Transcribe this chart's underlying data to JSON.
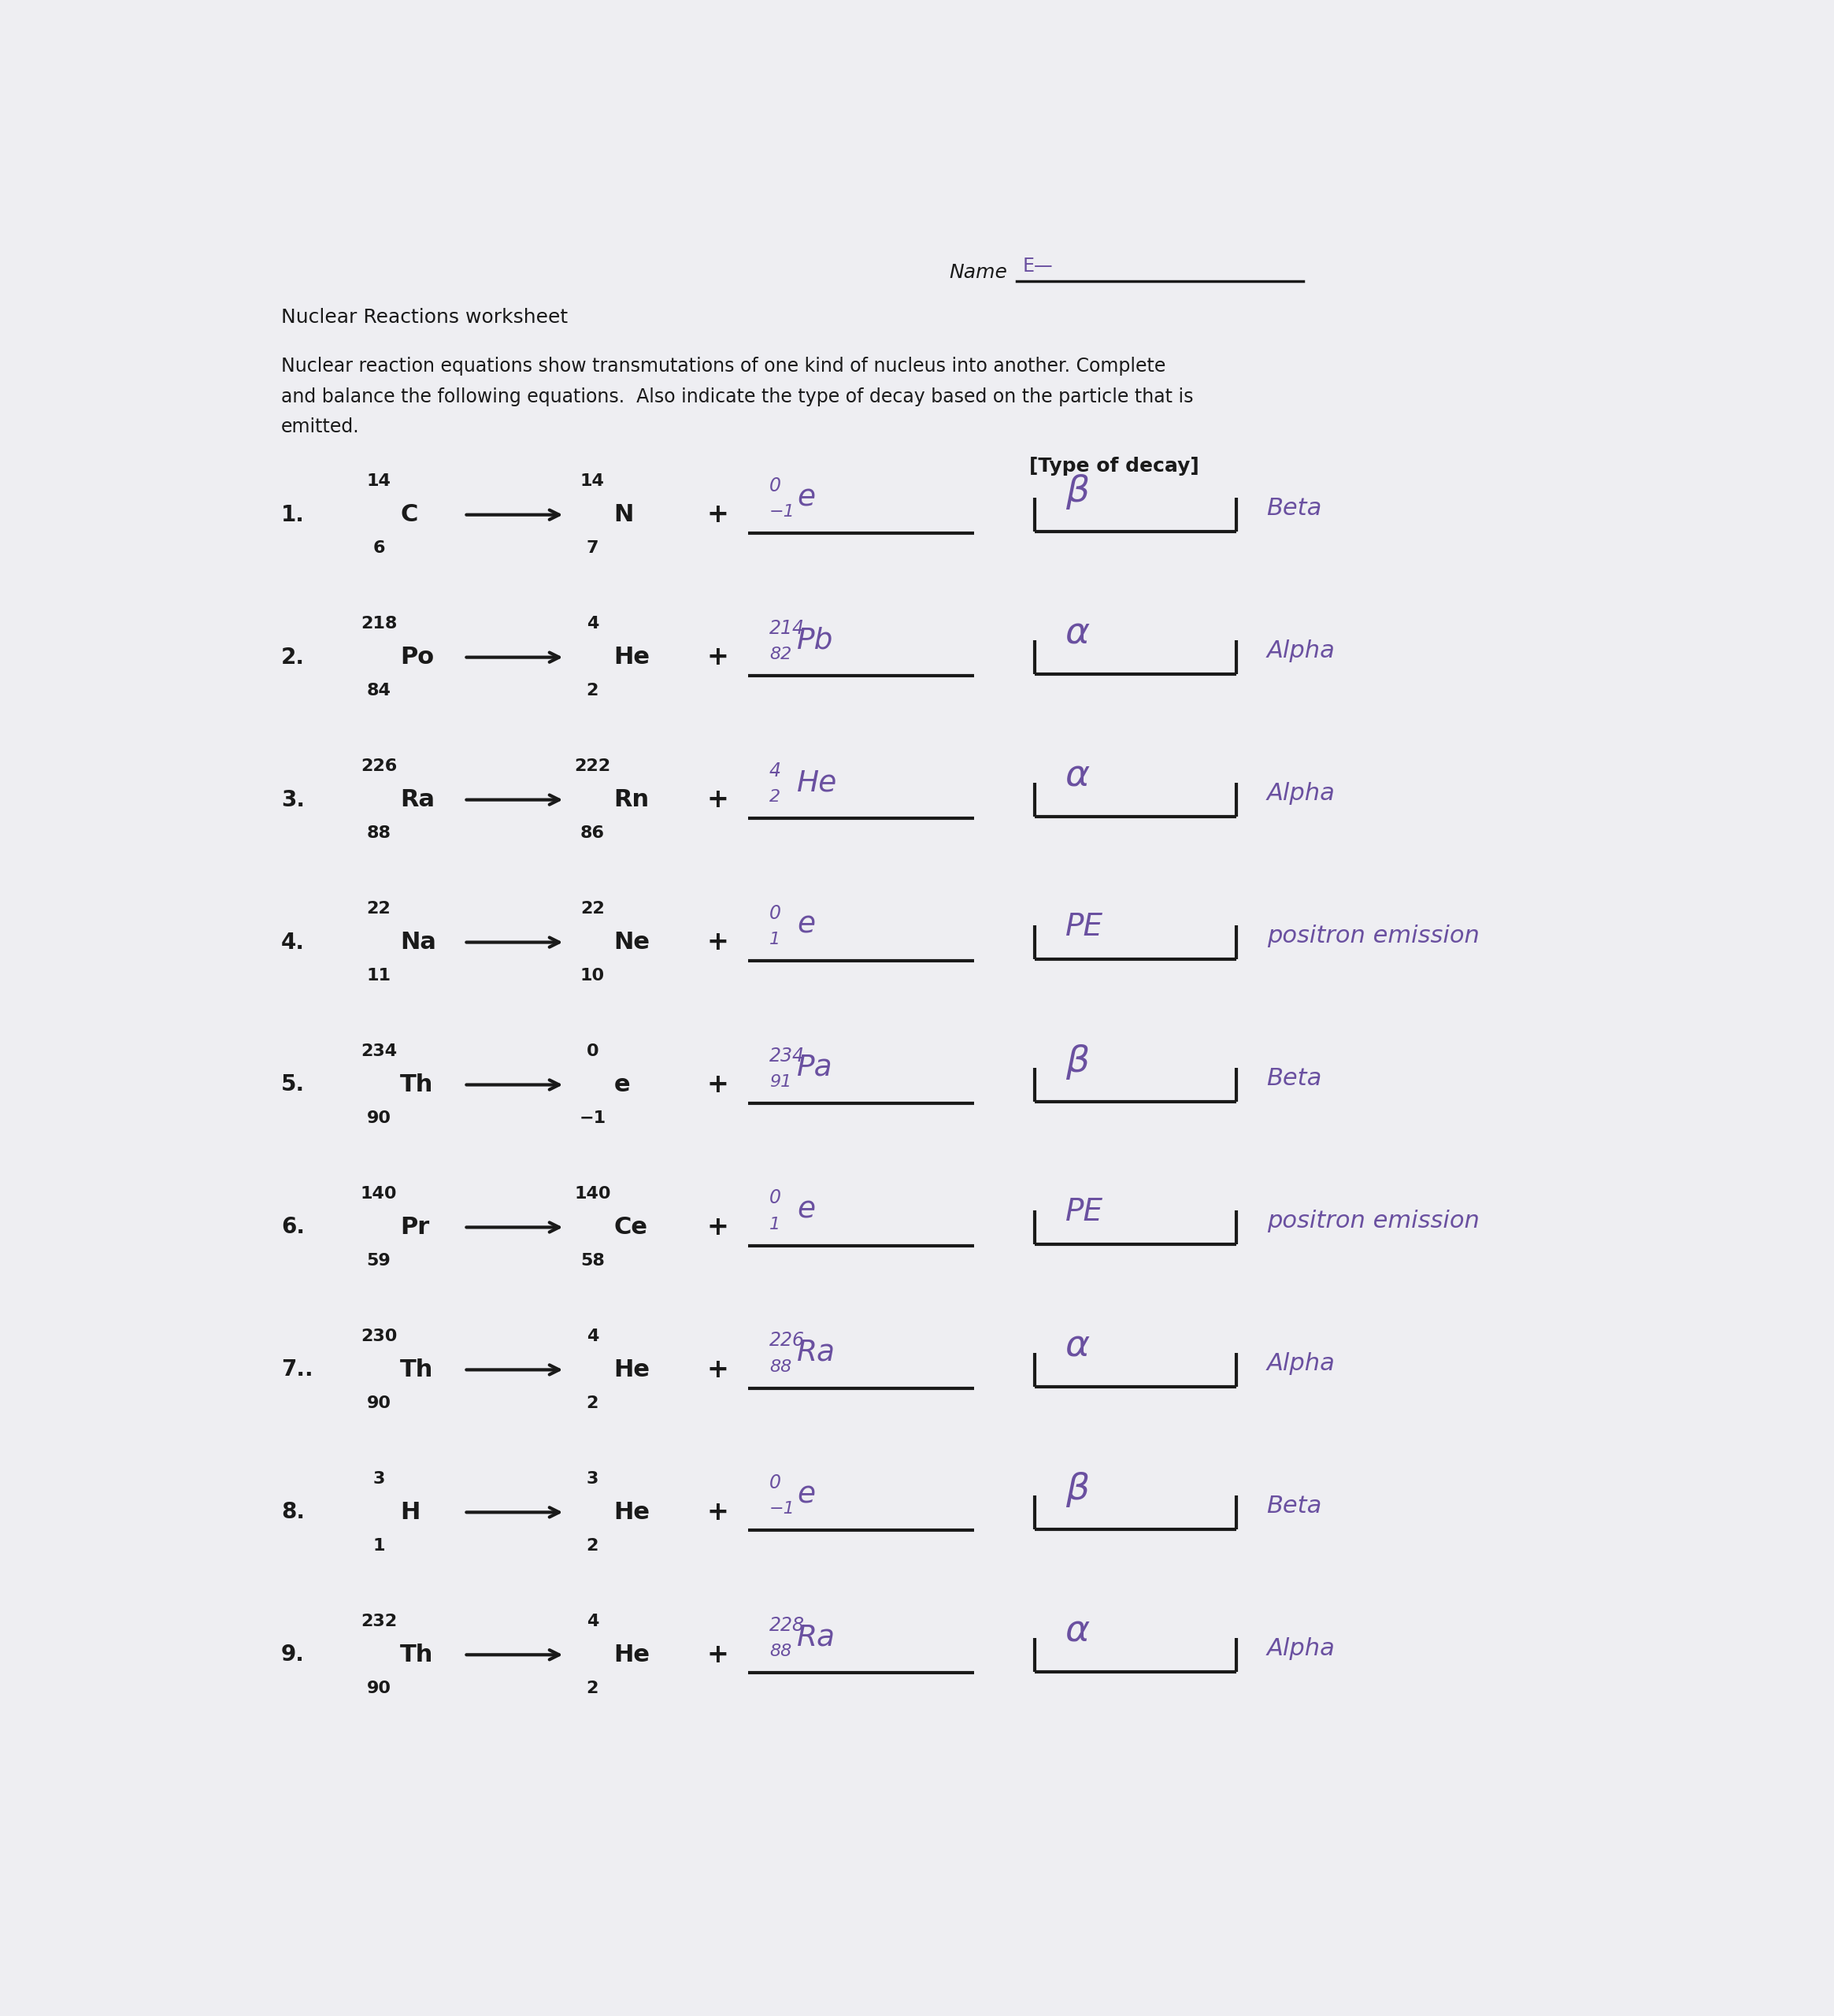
{
  "bg_color": "#eeeef2",
  "title_text": "Nuclear Reactions worksheet",
  "intro_line1": "Nuclear reaction equations show transmutations of one kind of nucleus into another. Complete",
  "intro_line2": "and balance the following equations.  Also indicate the type of decay based on the particle that is",
  "intro_line3": "emitted.",
  "type_of_decay_label": "[Type of decay]",
  "problems": [
    {
      "num": "1.",
      "left_mass": "14",
      "left_sym": "C",
      "left_atomic": "6",
      "right_mass": "14",
      "right_sym": "N",
      "right_atomic": "7",
      "hand_ans_super": "0",
      "hand_ans_sub": "−1",
      "hand_ans_sym": "e",
      "hand_decay": "β",
      "hand_decay_word": "Beta"
    },
    {
      "num": "2.",
      "left_mass": "218",
      "left_sym": "Po",
      "left_atomic": "84",
      "right_mass": "4",
      "right_sym": "He",
      "right_atomic": "2",
      "hand_ans_super": "214",
      "hand_ans_sub": "82",
      "hand_ans_sym": "Pb",
      "hand_decay": "α",
      "hand_decay_word": "Alpha"
    },
    {
      "num": "3.",
      "left_mass": "226",
      "left_sym": "Ra",
      "left_atomic": "88",
      "right_mass": "222",
      "right_sym": "Rn",
      "right_atomic": "86",
      "hand_ans_super": "4",
      "hand_ans_sub": "2",
      "hand_ans_sym": "He",
      "hand_decay": "α",
      "hand_decay_word": "Alpha"
    },
    {
      "num": "4.",
      "left_mass": "22",
      "left_sym": "Na",
      "left_atomic": "11",
      "right_mass": "22",
      "right_sym": "Ne",
      "right_atomic": "10",
      "hand_ans_super": "0",
      "hand_ans_sub": "1",
      "hand_ans_sym": "e",
      "hand_decay": "PE",
      "hand_decay_word": "positron emission"
    },
    {
      "num": "5.",
      "left_mass": "234",
      "left_sym": "Th",
      "left_atomic": "90",
      "right_mass": "0",
      "right_sym": "e",
      "right_atomic": "−1",
      "hand_ans_super": "234",
      "hand_ans_sub": "91",
      "hand_ans_sym": "Pa",
      "hand_decay": "β",
      "hand_decay_word": "Beta"
    },
    {
      "num": "6.",
      "left_mass": "140",
      "left_sym": "Pr",
      "left_atomic": "59",
      "right_mass": "140",
      "right_sym": "Ce",
      "right_atomic": "58",
      "hand_ans_super": "0",
      "hand_ans_sub": "1",
      "hand_ans_sym": "e",
      "hand_decay": "PE",
      "hand_decay_word": "positron emission"
    },
    {
      "num": "7..",
      "left_mass": "230",
      "left_sym": "Th",
      "left_atomic": "90",
      "right_mass": "4",
      "right_sym": "He",
      "right_atomic": "2",
      "hand_ans_super": "226",
      "hand_ans_sub": "88",
      "hand_ans_sym": "Ra",
      "hand_decay": "α",
      "hand_decay_word": "Alpha"
    },
    {
      "num": "8.",
      "left_mass": "3",
      "left_sym": "H",
      "left_atomic": "1",
      "right_mass": "3",
      "right_sym": "He",
      "right_atomic": "2",
      "hand_ans_super": "0",
      "hand_ans_sub": "−1",
      "hand_ans_sym": "e",
      "hand_decay": "β",
      "hand_decay_word": "Beta"
    },
    {
      "num": "9.",
      "left_mass": "232",
      "left_sym": "Th",
      "left_atomic": "90",
      "right_mass": "4",
      "right_sym": "He",
      "right_atomic": "2",
      "hand_ans_super": "228",
      "hand_ans_sub": "88",
      "hand_ans_sym": "Ra",
      "hand_decay": "α",
      "hand_decay_word": "Alpha"
    }
  ],
  "handwritten_color": "#6a50a0",
  "printed_color": "#1a1a1a",
  "line_color": "#1a1a1a"
}
